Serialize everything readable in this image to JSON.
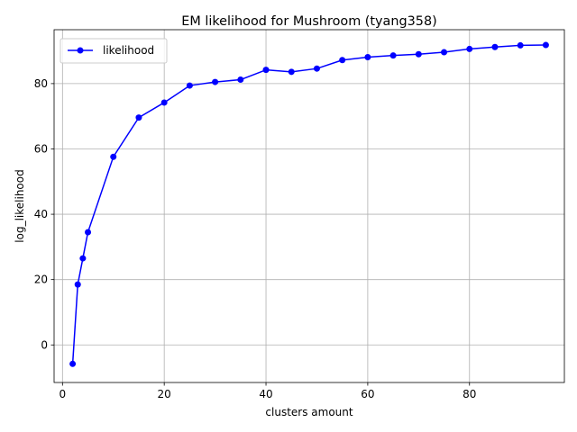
{
  "chart_data": {
    "type": "line",
    "title": "EM likelihood for Mushroom (tyang358)",
    "xlabel": "clusters amount",
    "ylabel": "log_likelihood",
    "xlim": [
      -1.65,
      98.65
    ],
    "ylim": [
      -11.5,
      96.5
    ],
    "xticks": [
      0,
      20,
      40,
      60,
      80
    ],
    "yticks": [
      0,
      20,
      40,
      60,
      80
    ],
    "grid": true,
    "legend_position": "top-left",
    "series": [
      {
        "name": "likelihood",
        "color": "#0000ff",
        "marker": "circle",
        "x": [
          2,
          3,
          4,
          5,
          10,
          15,
          20,
          25,
          30,
          35,
          40,
          45,
          50,
          55,
          60,
          65,
          70,
          75,
          80,
          85,
          90,
          95
        ],
        "y": [
          -5.8,
          18.5,
          26.5,
          34.5,
          57.6,
          69.6,
          74.2,
          79.4,
          80.5,
          81.2,
          84.2,
          83.6,
          84.6,
          87.2,
          88.1,
          88.6,
          89.0,
          89.6,
          90.6,
          91.2,
          91.7,
          91.8
        ]
      }
    ]
  }
}
